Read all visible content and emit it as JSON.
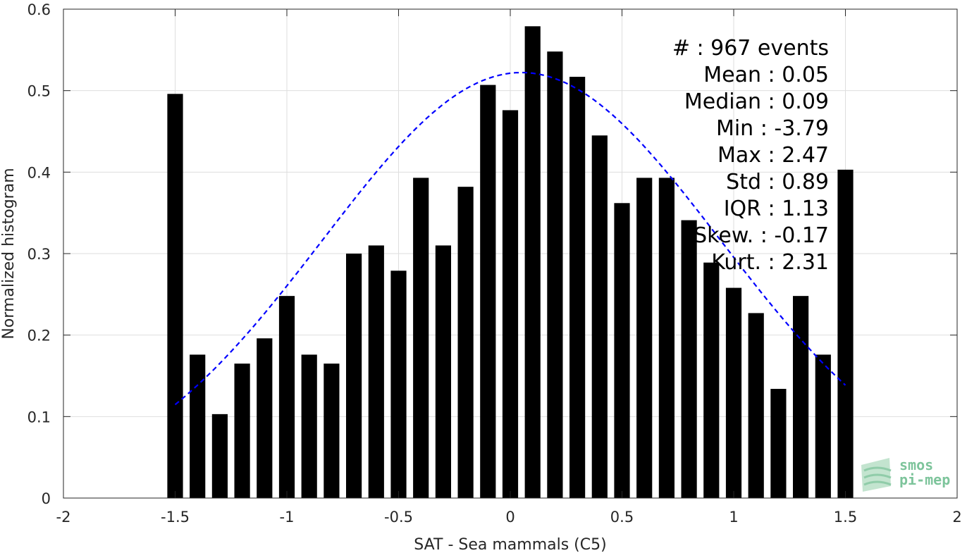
{
  "chart_data": {
    "type": "bar",
    "xlabel": "SAT - Sea mammals (C5)",
    "ylabel": "Normalized histogram",
    "xlim": [
      -2,
      2
    ],
    "ylim": [
      0,
      0.6
    ],
    "xticks": [
      -2,
      -1.5,
      -1,
      -0.5,
      0,
      0.5,
      1,
      1.5,
      2
    ],
    "xtick_labels": [
      "-2",
      "-1.5",
      "-1",
      "-0.5",
      "0",
      "0.5",
      "1",
      "1.5",
      "2"
    ],
    "yticks": [
      0,
      0.1,
      0.2,
      0.3,
      0.4,
      0.5,
      0.6
    ],
    "ytick_labels": [
      "0",
      "0.1",
      "0.2",
      "0.3",
      "0.4",
      "0.5",
      "0.6"
    ],
    "grid": true,
    "bar_color": "#000000",
    "bar_width": 0.07,
    "bins": [
      -1.5,
      -1.4,
      -1.3,
      -1.2,
      -1.1,
      -1.0,
      -0.9,
      -0.8,
      -0.7,
      -0.6,
      -0.5,
      -0.4,
      -0.3,
      -0.2,
      -0.1,
      0.0,
      0.1,
      0.2,
      0.3,
      0.4,
      0.5,
      0.6,
      0.7,
      0.8,
      0.9,
      1.0,
      1.1,
      1.2,
      1.3,
      1.4,
      1.5
    ],
    "values": [
      0.496,
      0.176,
      0.103,
      0.165,
      0.196,
      0.248,
      0.176,
      0.165,
      0.3,
      0.31,
      0.279,
      0.393,
      0.31,
      0.382,
      0.507,
      0.476,
      0.579,
      0.548,
      0.517,
      0.445,
      0.362,
      0.393,
      0.393,
      0.341,
      0.289,
      0.258,
      0.227,
      0.134,
      0.248,
      0.176,
      0.403
    ],
    "fit": {
      "type": "normal",
      "mean": 0.05,
      "std": 0.89,
      "x_range": [
        -1.5,
        1.5
      ],
      "color": "#0000ff",
      "style": "dashed"
    },
    "stats": [
      {
        "label": "#  : 967 events"
      },
      {
        "label": "Mean : 0.05"
      },
      {
        "label": "Median : 0.09"
      },
      {
        "label": "Min : -3.79"
      },
      {
        "label": "Max : 2.47"
      },
      {
        "label": "Std : 0.89"
      },
      {
        "label": "IQR : 1.13"
      },
      {
        "label": "Skew. : -0.17"
      },
      {
        "label": "Kurt. : 2.31"
      }
    ]
  },
  "logo": {
    "line1": "smos",
    "line2": "pi-mep",
    "color": "#7dc49b"
  }
}
